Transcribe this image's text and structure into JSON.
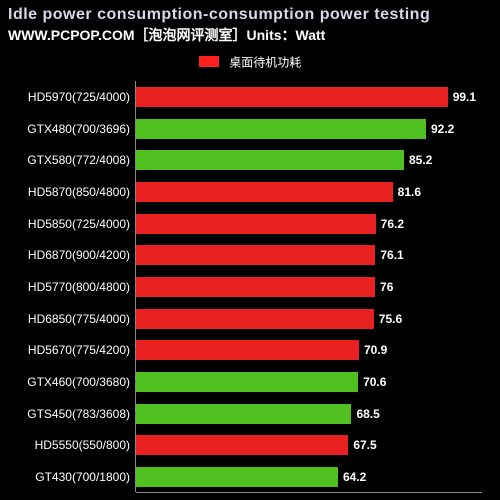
{
  "chart": {
    "type": "bar",
    "title": "Idle power consumption-consumption power testing",
    "subtitle": "WWW.PCPOP.COM［泡泡网评测室］Units：Watt",
    "title_color": "#d8d8e8",
    "subtitle_color": "#ffffff",
    "background_color": "#000000",
    "legend": {
      "label": "桌面待机功耗",
      "color": "#ff2020"
    },
    "colors": {
      "red": "#e82020",
      "green": "#50c020"
    },
    "xlim": [
      0,
      110
    ],
    "bars": [
      {
        "label": "HD5970(725/4000)",
        "value": 99.1,
        "colorKey": "red"
      },
      {
        "label": "GTX480(700/3696)",
        "value": 92.2,
        "colorKey": "green"
      },
      {
        "label": "GTX580(772/4008)",
        "value": 85.2,
        "colorKey": "green"
      },
      {
        "label": "HD5870(850/4800)",
        "value": 81.6,
        "colorKey": "red"
      },
      {
        "label": "HD5850(725/4000)",
        "value": 76.2,
        "colorKey": "red"
      },
      {
        "label": "HD6870(900/4200)",
        "value": 76.1,
        "colorKey": "red"
      },
      {
        "label": "HD5770(800/4800)",
        "value": 76,
        "colorKey": "red"
      },
      {
        "label": "HD6850(775/4000)",
        "value": 75.6,
        "colorKey": "red"
      },
      {
        "label": "HD5670(775/4200)",
        "value": 70.9,
        "colorKey": "red"
      },
      {
        "label": "GTX460(700/3680)",
        "value": 70.6,
        "colorKey": "green"
      },
      {
        "label": "GTS450(783/3608)",
        "value": 68.5,
        "colorKey": "green"
      },
      {
        "label": "HD5550(550/800)",
        "value": 67.5,
        "colorKey": "red"
      },
      {
        "label": "GT430(700/1800)",
        "value": 64.2,
        "colorKey": "green"
      }
    ]
  }
}
